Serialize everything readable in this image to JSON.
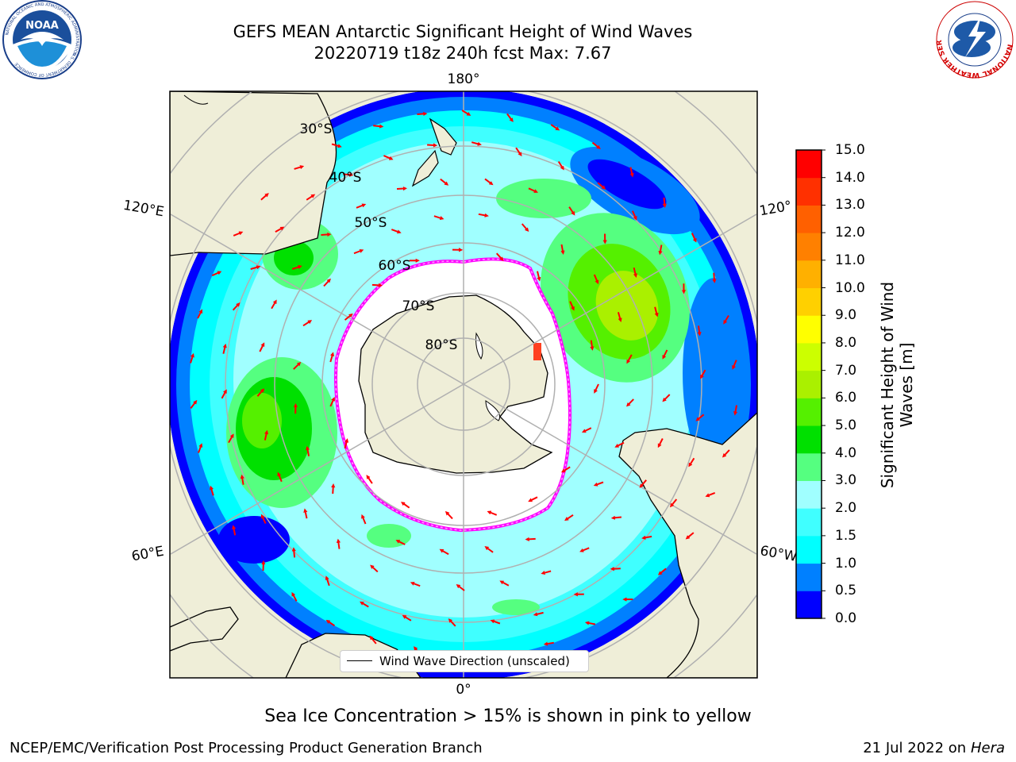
{
  "header": {
    "title_line1": "GEFS MEAN Antarctic Significant Height of Wind Waves",
    "title_line2": "20220719 t18z 240h fcst   Max: 7.67"
  },
  "logos": {
    "noaa_text": "NOAA",
    "noaa_ring_text": "NATIONAL OCEANIC AND ATMOSPHERIC ADMINISTRATION",
    "noaa_ring_bottom": "U.S. DEPARTMENT OF COMMERCE",
    "nws_ring_text": "NATIONAL WEATHER SERVICE"
  },
  "map": {
    "longitude_labels": {
      "top": "180°",
      "bottom": "0°",
      "upper_left": "120°E",
      "upper_right": "120°",
      "lower_left": "60°E",
      "lower_right": "60°W"
    },
    "latitude_labels": [
      "30°S",
      "40°S",
      "50°S",
      "60°S",
      "70°S",
      "80°S"
    ],
    "legend_label": "Wind Wave Direction (unscaled)"
  },
  "colorbar": {
    "title_line1": "Significant Height of Wind",
    "title_line2": "Waves [m]",
    "ticks": [
      "0.0",
      "0.5",
      "1.0",
      "1.5",
      "2.0",
      "3.0",
      "4.0",
      "5.0",
      "6.0",
      "7.0",
      "8.0",
      "9.0",
      "10.0",
      "11.0",
      "12.0",
      "13.0",
      "14.0",
      "15.0"
    ],
    "colors": [
      "#0000ff",
      "#0080ff",
      "#00ffff",
      "#40ffff",
      "#a0ffff",
      "#55ff80",
      "#00e000",
      "#55f000",
      "#aaf000",
      "#ccff00",
      "#ffff00",
      "#ffd000",
      "#ffb000",
      "#ff8000",
      "#ff6000",
      "#ff3000",
      "#ff0000"
    ]
  },
  "caption": "Sea Ice Concentration > 15% is shown in pink to yellow",
  "footer": {
    "left": "NCEP/EMC/Verification Post Processing Product Generation Branch",
    "date": "21 Jul 2022 on",
    "machine": "Hera"
  }
}
